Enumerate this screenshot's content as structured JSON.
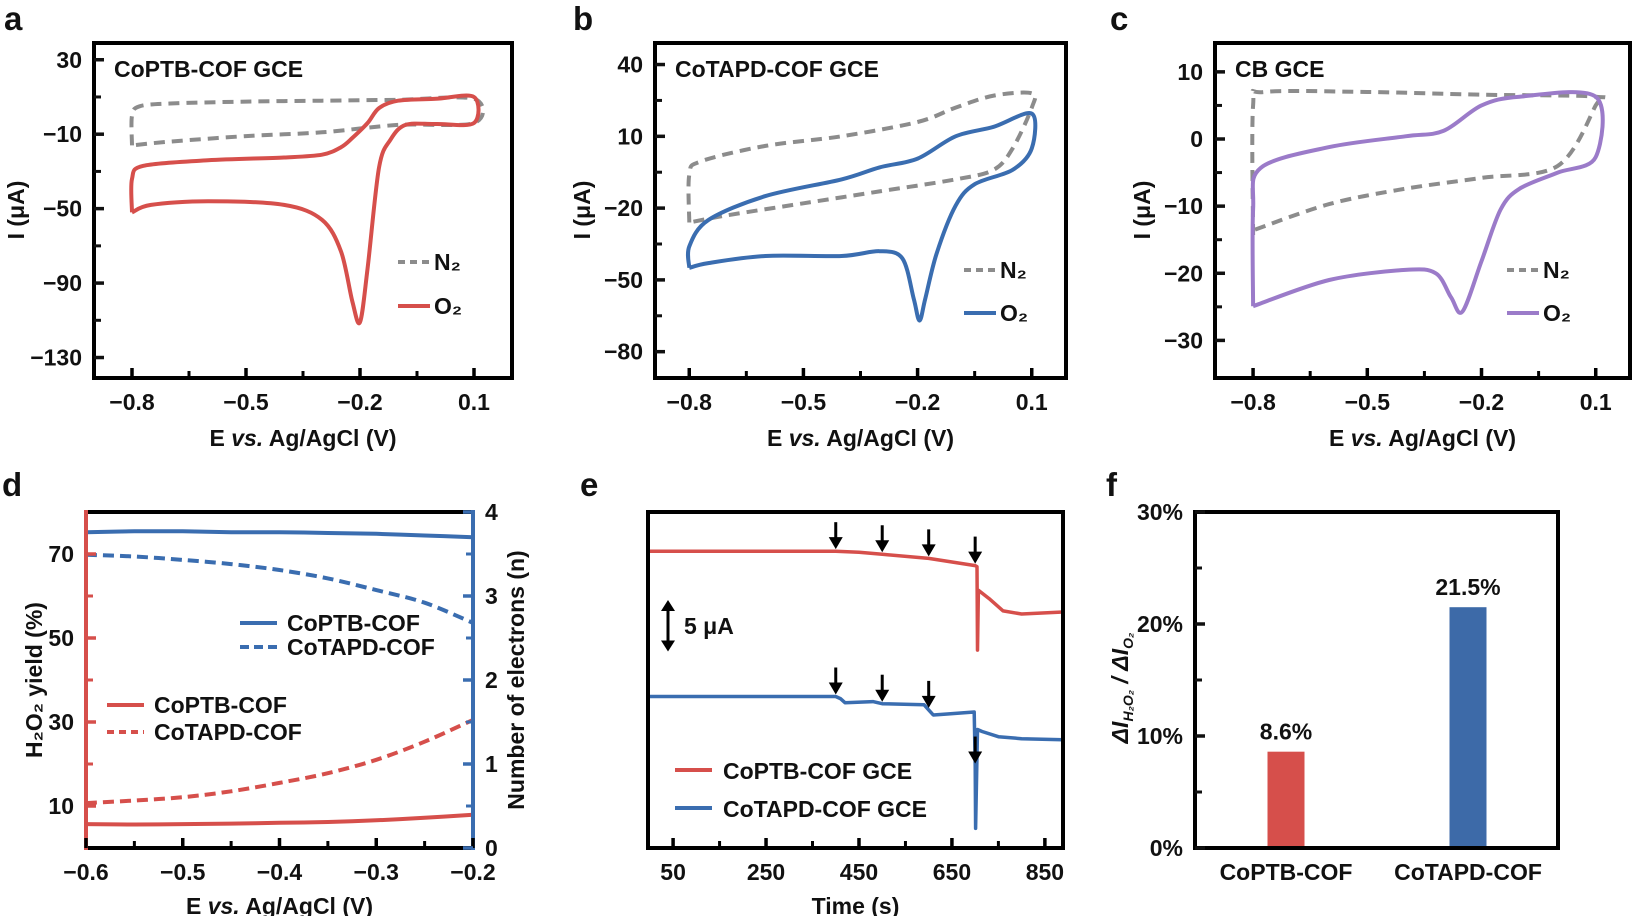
{
  "chart_data": [
    {
      "panel": "a",
      "type": "line",
      "title": "CoPTB-COF GCE",
      "xlabel_parts": [
        "E ",
        "vs.",
        " Ag/AgCl (V)"
      ],
      "ylabel": "I (μA)",
      "xlim": [
        -0.9,
        0.2
      ],
      "ylim": [
        -141,
        39
      ],
      "xticks": [
        -0.8,
        -0.5,
        -0.2,
        0.1
      ],
      "xtick_labels": [
        "−0.8",
        "−0.5",
        "−0.2",
        "0.1"
      ],
      "xminor": [
        -0.65,
        -0.35,
        -0.05
      ],
      "yticks": [
        30,
        -10,
        -50,
        -90,
        -130
      ],
      "ytick_labels": [
        "30",
        "−10",
        "−50",
        "−90",
        "−130"
      ],
      "yminor": [
        10,
        -30,
        -70,
        -110
      ],
      "legend_placement": "bottom-right",
      "series": [
        {
          "name": "N₂",
          "style": "dashed",
          "color": "#8c8c8c",
          "points": [
            [
              -0.8,
              -16
            ],
            [
              -0.8,
              0
            ],
            [
              -0.78,
              5
            ],
            [
              -0.7,
              6.5
            ],
            [
              -0.5,
              7.5
            ],
            [
              -0.3,
              8
            ],
            [
              -0.1,
              8.5
            ],
            [
              0.1,
              9
            ],
            [
              0.1,
              -4
            ],
            [
              -0.1,
              -5
            ],
            [
              -0.3,
              -9
            ],
            [
              -0.5,
              -11
            ],
            [
              -0.7,
              -14
            ],
            [
              -0.8,
              -16
            ]
          ]
        },
        {
          "name": "O₂",
          "style": "solid",
          "color": "#d64f4b",
          "points": [
            [
              -0.8,
              -52
            ],
            [
              -0.8,
              -34
            ],
            [
              -0.77,
              -27
            ],
            [
              -0.6,
              -24
            ],
            [
              -0.4,
              -22.5
            ],
            [
              -0.3,
              -21
            ],
            [
              -0.25,
              -17
            ],
            [
              -0.22,
              -12
            ],
            [
              -0.18,
              -4
            ],
            [
              -0.15,
              4
            ],
            [
              -0.1,
              8
            ],
            [
              0.0,
              9
            ],
            [
              0.1,
              10
            ],
            [
              0.1,
              -4
            ],
            [
              0.0,
              -4.5
            ],
            [
              -0.08,
              -5
            ],
            [
              -0.12,
              -13
            ],
            [
              -0.15,
              -28
            ],
            [
              -0.18,
              -82
            ],
            [
              -0.2,
              -111
            ],
            [
              -0.22,
              -100
            ],
            [
              -0.25,
              -73
            ],
            [
              -0.3,
              -56
            ],
            [
              -0.4,
              -48
            ],
            [
              -0.6,
              -46
            ],
            [
              -0.75,
              -48
            ],
            [
              -0.8,
              -52
            ]
          ]
        }
      ]
    },
    {
      "panel": "b",
      "type": "line",
      "title": "CoTAPD-COF GCE",
      "xlabel_parts": [
        "E ",
        "vs.",
        " Ag/AgCl (V)"
      ],
      "ylabel": "I (μA)",
      "xlim": [
        -0.89,
        0.19
      ],
      "ylim": [
        -91,
        49
      ],
      "xticks": [
        -0.8,
        -0.5,
        -0.2,
        0.1
      ],
      "xtick_labels": [
        "−0.8",
        "−0.5",
        "−0.2",
        "0.1"
      ],
      "xminor": [
        -0.65,
        -0.35,
        -0.05
      ],
      "yticks": [
        40,
        10,
        -20,
        -50,
        -80
      ],
      "ytick_labels": [
        "40",
        "10",
        "−20",
        "−50",
        "−80"
      ],
      "yminor": [
        25,
        -5,
        -35,
        -65
      ],
      "legend_placement": "bottom-right",
      "series": [
        {
          "name": "N₂",
          "style": "dashed",
          "color": "#8c8c8c",
          "points": [
            [
              -0.8,
              -26
            ],
            [
              -0.8,
              -6
            ],
            [
              -0.77,
              -0.5
            ],
            [
              -0.6,
              6
            ],
            [
              -0.4,
              10
            ],
            [
              -0.2,
              16
            ],
            [
              -0.1,
              22
            ],
            [
              0.0,
              27
            ],
            [
              0.1,
              28
            ],
            [
              0.1,
              22
            ],
            [
              0.05,
              5
            ],
            [
              0.0,
              -4
            ],
            [
              -0.1,
              -8
            ],
            [
              -0.3,
              -13
            ],
            [
              -0.5,
              -18
            ],
            [
              -0.7,
              -23
            ],
            [
              -0.8,
              -26
            ]
          ]
        },
        {
          "name": "O₂",
          "style": "solid",
          "color": "#3a6db0",
          "points": [
            [
              -0.8,
              -45
            ],
            [
              -0.8,
              -36
            ],
            [
              -0.75,
              -25
            ],
            [
              -0.6,
              -15
            ],
            [
              -0.4,
              -8
            ],
            [
              -0.3,
              -3
            ],
            [
              -0.2,
              0.7
            ],
            [
              -0.1,
              10
            ],
            [
              0.0,
              14
            ],
            [
              0.1,
              19.5
            ],
            [
              0.1,
              5
            ],
            [
              0.05,
              -4
            ],
            [
              -0.05,
              -10
            ],
            [
              -0.1,
              -19
            ],
            [
              -0.15,
              -39
            ],
            [
              -0.18,
              -58
            ],
            [
              -0.195,
              -67
            ],
            [
              -0.21,
              -58
            ],
            [
              -0.24,
              -41
            ],
            [
              -0.3,
              -38
            ],
            [
              -0.4,
              -40
            ],
            [
              -0.6,
              -40
            ],
            [
              -0.75,
              -43
            ],
            [
              -0.8,
              -45
            ]
          ]
        }
      ]
    },
    {
      "panel": "c",
      "type": "line",
      "title": "CB GCE",
      "xlabel_parts": [
        "E ",
        "vs.",
        " Ag/AgCl (V)"
      ],
      "ylabel": "I (μA)",
      "xlim": [
        -0.9,
        0.19
      ],
      "ylim": [
        -35.6,
        14.3
      ],
      "xticks": [
        -0.8,
        -0.5,
        -0.2,
        0.1
      ],
      "xtick_labels": [
        "−0.8",
        "−0.5",
        "−0.2",
        "0.1"
      ],
      "xminor": [
        -0.65,
        -0.35,
        -0.05
      ],
      "yticks": [
        10,
        0,
        -10,
        -20,
        -30
      ],
      "ytick_labels": [
        "10",
        "0",
        "−10",
        "−20",
        "−30"
      ],
      "yminor": [
        5,
        -5,
        -15,
        -25
      ],
      "legend_placement": "bottom-right",
      "series": [
        {
          "name": "N₂",
          "style": "dashed",
          "color": "#8c8c8c",
          "points": [
            [
              -0.8,
              -14.3
            ],
            [
              -0.8,
              5
            ],
            [
              -0.77,
              7
            ],
            [
              -0.5,
              7
            ],
            [
              -0.2,
              6.6
            ],
            [
              0.1,
              6.3
            ],
            [
              0.1,
              5
            ],
            [
              0.0,
              -4
            ],
            [
              -0.2,
              -5.8
            ],
            [
              -0.4,
              -7.4
            ],
            [
              -0.6,
              -9.7
            ],
            [
              -0.8,
              -13.6
            ]
          ]
        },
        {
          "name": "O₂",
          "style": "solid",
          "color": "#9b7bc9",
          "points": [
            [
              -0.8,
              -24.9
            ],
            [
              -0.8,
              -10.5
            ],
            [
              -0.78,
              -4.3
            ],
            [
              -0.6,
              -1.2
            ],
            [
              -0.4,
              0.4
            ],
            [
              -0.3,
              1.2
            ],
            [
              -0.2,
              5
            ],
            [
              -0.1,
              6.3
            ],
            [
              0.1,
              6.3
            ],
            [
              0.1,
              -2.7
            ],
            [
              0.0,
              -5
            ],
            [
              -0.1,
              -7.4
            ],
            [
              -0.15,
              -10.5
            ],
            [
              -0.2,
              -18.2
            ],
            [
              -0.25,
              -25.7
            ],
            [
              -0.28,
              -23.6
            ],
            [
              -0.32,
              -20
            ],
            [
              -0.4,
              -19.5
            ],
            [
              -0.6,
              -21
            ],
            [
              -0.8,
              -24.9
            ]
          ]
        }
      ]
    },
    {
      "panel": "d",
      "type": "line",
      "xlabel_parts": [
        "E ",
        "vs.",
        " Ag/AgCl (V)"
      ],
      "ylabel_left": "H₂O₂ yield (%)",
      "ylabel_right": "Number of electrons (n)",
      "xlim": [
        -0.6,
        -0.2
      ],
      "ylim_left": [
        0,
        80
      ],
      "ylim_right": [
        0,
        4
      ],
      "xticks": [
        -0.6,
        -0.5,
        -0.4,
        -0.3,
        -0.2
      ],
      "xtick_labels": [
        "−0.6",
        "−0.5",
        "−0.4",
        "−0.3",
        "−0.2"
      ],
      "xminor": [
        -0.55,
        -0.45,
        -0.35,
        -0.25
      ],
      "yticks_left": [
        10,
        30,
        50,
        70
      ],
      "ytick_labels_left": [
        "10",
        "30",
        "50",
        "70"
      ],
      "yminor_left": [
        20,
        40,
        60
      ],
      "yticks_right": [
        0,
        1,
        2,
        3,
        4
      ],
      "ytick_labels_right": [
        "0",
        "1",
        "2",
        "3",
        "4"
      ],
      "yminor_right": [
        0.5,
        1.5,
        2.5,
        3.5
      ],
      "left_color": "#d64f4b",
      "right_color": "#3a6db0",
      "x": [
        -0.6,
        -0.55,
        -0.5,
        -0.45,
        -0.4,
        -0.35,
        -0.3,
        -0.25,
        -0.2
      ],
      "series": [
        {
          "name": "CoPTB-COF",
          "axis": "right",
          "style": "solid",
          "color": "#3a6db0",
          "y": [
            3.76,
            3.77,
            3.77,
            3.76,
            3.76,
            3.75,
            3.74,
            3.72,
            3.7
          ]
        },
        {
          "name": "CoTAPD-COF",
          "axis": "right",
          "style": "dashed",
          "color": "#3a6db0",
          "y": [
            3.49,
            3.47,
            3.43,
            3.38,
            3.31,
            3.21,
            3.07,
            2.92,
            2.68
          ]
        },
        {
          "name": "CoPTB-COF",
          "axis": "left",
          "style": "solid",
          "color": "#d64f4b",
          "y": [
            5.7,
            5.6,
            5.7,
            5.8,
            6.0,
            6.2,
            6.6,
            7.2,
            7.9
          ]
        },
        {
          "name": "CoTAPD-COF",
          "axis": "left",
          "style": "dashed",
          "color": "#d64f4b",
          "y": [
            10.7,
            11.3,
            12.1,
            13.5,
            15.5,
            17.8,
            21.0,
            25.3,
            30.5
          ]
        }
      ]
    },
    {
      "panel": "e",
      "type": "line",
      "xlabel": "Time (s)",
      "xlim": [
        -4,
        889
      ],
      "ylim": [
        0,
        32.6
      ],
      "xticks": [
        50,
        250,
        450,
        650,
        850
      ],
      "xtick_labels": [
        "50",
        "250",
        "450",
        "650",
        "850"
      ],
      "xminor": [
        150,
        350,
        550,
        750
      ],
      "scale_bar": {
        "value": 5,
        "label": "5 μA"
      },
      "series": [
        {
          "name": "CoPTB-COF GCE",
          "style": "solid",
          "color": "#d64f4b",
          "arrow_times": [
            400,
            500,
            600,
            700
          ],
          "points": [
            [
              -4,
              28.8
            ],
            [
              400,
              28.8
            ],
            [
              450,
              28.7
            ],
            [
              500,
              28.5
            ],
            [
              600,
              28.1
            ],
            [
              700,
              27.4
            ],
            [
              704,
              27.3
            ],
            [
              705,
              19.2
            ],
            [
              707,
              25
            ],
            [
              730,
              24.2
            ],
            [
              760,
              23
            ],
            [
              800,
              22.7
            ],
            [
              889,
              22.9
            ]
          ]
        },
        {
          "name": "CoTAPD-COF GCE",
          "style": "solid",
          "color": "#3a6db0",
          "arrow_times": [
            400,
            500,
            600,
            700
          ],
          "points": [
            [
              -4,
              14.7
            ],
            [
              400,
              14.7
            ],
            [
              410,
              14.5
            ],
            [
              420,
              14.1
            ],
            [
              480,
              14.2
            ],
            [
              500,
              14.0
            ],
            [
              590,
              13.9
            ],
            [
              600,
              13.4
            ],
            [
              610,
              12.9
            ],
            [
              640,
              13.0
            ],
            [
              698,
              13.2
            ],
            [
              700,
              8
            ],
            [
              701,
              1.9
            ],
            [
              705,
              11.5
            ],
            [
              715,
              11.3
            ],
            [
              750,
              10.8
            ],
            [
              800,
              10.6
            ],
            [
              889,
              10.5
            ]
          ]
        }
      ]
    },
    {
      "panel": "f",
      "type": "bar",
      "ylabel_parts": [
        "ΔI",
        "H₂O₂",
        " / ΔI",
        "O₂"
      ],
      "ylim": [
        0,
        30
      ],
      "yticks": [
        0,
        10,
        20,
        30
      ],
      "ytick_labels": [
        "0%",
        "10%",
        "20%",
        "30%"
      ],
      "yminor": [
        5,
        15,
        25
      ],
      "categories": [
        "CoPTB-COF",
        "CoTAPD-COF"
      ],
      "values": [
        8.6,
        21.5
      ],
      "value_labels": [
        "8.6%",
        "21.5%"
      ],
      "colors": [
        "#d64f4b",
        "#3d6aa8"
      ]
    }
  ]
}
